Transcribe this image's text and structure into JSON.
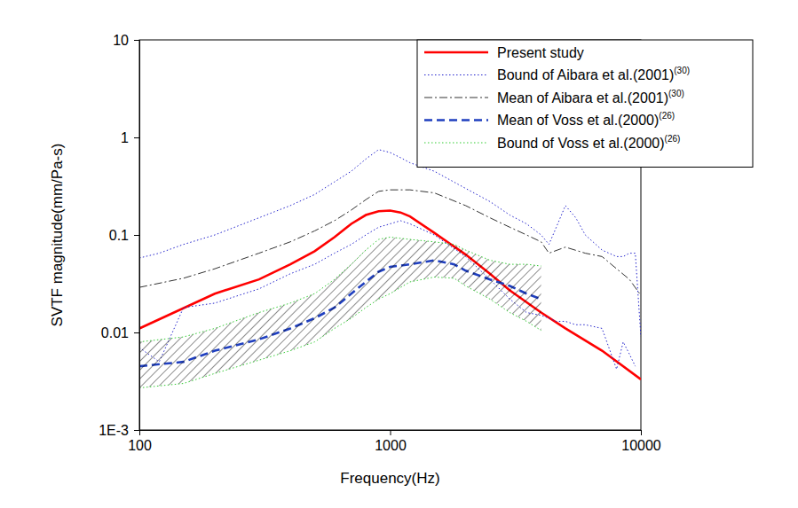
{
  "chart_data": {
    "type": "line",
    "x_label": "Frequency(Hz)",
    "y_label": "SVTF magnitude(mm/Pa-s)",
    "log": true,
    "grid": false,
    "legend": "upper right",
    "xlim": [
      100,
      10000
    ],
    "ylim": [
      0.001,
      10
    ],
    "xticks": [
      100,
      1000,
      10000
    ],
    "yticks": [
      {
        "value": 0.001,
        "label": "1E-3"
      },
      0.01,
      0.1,
      1,
      10
    ],
    "series": [
      {
        "name": "Present study",
        "type": "line",
        "color": "#ff0000",
        "line_style": "solid",
        "x": [
          100,
          200,
          300,
          400,
          500,
          600,
          700,
          800,
          900,
          1000,
          1100,
          1200,
          1500,
          2000,
          2500,
          3000,
          4000,
          5000,
          7000,
          10000
        ],
        "values": [
          0.011,
          0.025,
          0.035,
          0.05,
          0.068,
          0.095,
          0.13,
          0.16,
          0.175,
          0.178,
          0.17,
          0.155,
          0.105,
          0.063,
          0.04,
          0.027,
          0.016,
          0.011,
          0.0065,
          0.0033
        ]
      },
      {
        "name": "Bound of Aibara et al.(2001)",
        "reference": "(30)",
        "type": "band",
        "color": "#2222cc",
        "line_style": "dotted",
        "x": [
          100,
          120,
          150,
          200,
          300,
          400,
          500,
          600,
          700,
          800,
          900,
          1000,
          1100,
          1200,
          1500,
          2000,
          2500,
          3000,
          3500,
          4000,
          4300,
          4600,
          5000,
          5500,
          6000,
          7000,
          8000,
          8500,
          9000,
          9500,
          10000
        ],
        "upper": [
          0.058,
          0.065,
          0.08,
          0.1,
          0.15,
          0.2,
          0.26,
          0.35,
          0.45,
          0.6,
          0.75,
          0.7,
          0.62,
          0.55,
          0.45,
          0.3,
          0.22,
          0.16,
          0.13,
          0.1,
          0.08,
          0.12,
          0.2,
          0.15,
          0.1,
          0.07,
          0.06,
          0.06,
          0.065,
          0.065,
          0.009
        ],
        "lower": [
          0.007,
          0.005,
          0.018,
          0.02,
          0.028,
          0.04,
          0.05,
          0.065,
          0.08,
          0.1,
          0.12,
          0.13,
          0.14,
          0.13,
          0.1,
          0.06,
          0.035,
          0.022,
          0.016,
          0.015,
          0.014,
          0.013,
          0.013,
          0.012,
          0.012,
          0.011,
          0.0042,
          0.008,
          0.006,
          0.0045,
          null
        ]
      },
      {
        "name": "Mean of Aibara et al.(2001)",
        "reference": "(30)",
        "type": "line",
        "color": "#333333",
        "line_style": "dash-dot",
        "x": [
          100,
          150,
          200,
          300,
          400,
          500,
          600,
          700,
          800,
          900,
          1000,
          1200,
          1500,
          2000,
          2500,
          3000,
          3500,
          4000,
          4300,
          5000,
          6000,
          7000,
          8000,
          9000,
          10000
        ],
        "values": [
          0.029,
          0.036,
          0.045,
          0.065,
          0.085,
          0.11,
          0.14,
          0.18,
          0.23,
          0.28,
          0.29,
          0.29,
          0.27,
          0.2,
          0.15,
          0.12,
          0.1,
          0.085,
          0.065,
          0.075,
          0.065,
          0.06,
          0.045,
          0.035,
          0.024
        ]
      },
      {
        "name": "Mean of Voss et al.(2000)",
        "reference": "(26)",
        "type": "line",
        "color": "#1f3fbf",
        "line_style": "dashed",
        "x": [
          100,
          150,
          200,
          300,
          400,
          500,
          600,
          700,
          800,
          900,
          1000,
          1200,
          1500,
          1800,
          2000,
          2500,
          3000,
          3500,
          4000
        ],
        "values": [
          0.0045,
          0.005,
          0.0065,
          0.0085,
          0.011,
          0.014,
          0.018,
          0.025,
          0.033,
          0.042,
          0.047,
          0.05,
          0.055,
          0.05,
          0.043,
          0.035,
          0.03,
          0.025,
          0.022
        ]
      },
      {
        "name": "Bound of Voss et al.(2000)",
        "reference": "(26)",
        "type": "area",
        "color": "#33cc33",
        "line_style": "dotted",
        "x": [
          100,
          150,
          200,
          300,
          400,
          500,
          600,
          700,
          800,
          900,
          1000,
          1200,
          1500,
          1800,
          2000,
          2500,
          3000,
          3500,
          4000
        ],
        "upper": [
          0.008,
          0.009,
          0.011,
          0.016,
          0.02,
          0.025,
          0.035,
          0.05,
          0.07,
          0.09,
          0.095,
          0.09,
          0.085,
          0.08,
          0.07,
          0.055,
          0.05,
          0.05,
          0.048
        ],
        "lower": [
          0.0027,
          0.003,
          0.0038,
          0.0052,
          0.0065,
          0.008,
          0.011,
          0.014,
          0.018,
          0.022,
          0.025,
          0.033,
          0.037,
          0.036,
          0.03,
          0.022,
          0.016,
          0.013,
          0.0105
        ]
      }
    ]
  }
}
